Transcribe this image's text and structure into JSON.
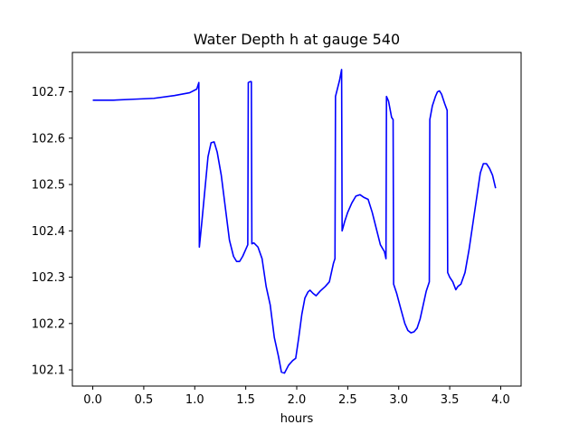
{
  "chart_data": {
    "type": "line",
    "title": "Water Depth h at gauge 540",
    "xlabel": "hours",
    "ylabel": "",
    "xlim": [
      -0.2,
      4.2
    ],
    "ylim": [
      102.065,
      102.785
    ],
    "xticks": [
      0.0,
      0.5,
      1.0,
      1.5,
      2.0,
      2.5,
      3.0,
      3.5,
      4.0
    ],
    "xtick_labels": [
      "0.0",
      "0.5",
      "1.0",
      "1.5",
      "2.0",
      "2.5",
      "3.0",
      "3.5",
      "4.0"
    ],
    "yticks": [
      102.1,
      102.2,
      102.3,
      102.4,
      102.5,
      102.6,
      102.7
    ],
    "ytick_labels": [
      "102.1",
      "102.2",
      "102.3",
      "102.4",
      "102.5",
      "102.6",
      "102.7"
    ],
    "grid": false,
    "series": [
      {
        "color": "#0000ff",
        "points": [
          [
            0.0,
            102.682
          ],
          [
            0.2,
            102.682
          ],
          [
            0.4,
            102.684
          ],
          [
            0.6,
            102.686
          ],
          [
            0.8,
            102.692
          ],
          [
            0.95,
            102.698
          ],
          [
            1.02,
            102.706
          ],
          [
            1.04,
            102.72
          ],
          [
            1.045,
            102.365
          ],
          [
            1.07,
            102.42
          ],
          [
            1.1,
            102.49
          ],
          [
            1.13,
            102.56
          ],
          [
            1.16,
            102.59
          ],
          [
            1.19,
            102.592
          ],
          [
            1.22,
            102.57
          ],
          [
            1.26,
            102.52
          ],
          [
            1.3,
            102.45
          ],
          [
            1.34,
            102.38
          ],
          [
            1.38,
            102.345
          ],
          [
            1.41,
            102.334
          ],
          [
            1.44,
            102.334
          ],
          [
            1.47,
            102.345
          ],
          [
            1.5,
            102.36
          ],
          [
            1.52,
            102.37
          ],
          [
            1.525,
            102.72
          ],
          [
            1.545,
            102.722
          ],
          [
            1.555,
            102.722
          ],
          [
            1.56,
            102.372
          ],
          [
            1.58,
            102.374
          ],
          [
            1.62,
            102.365
          ],
          [
            1.66,
            102.34
          ],
          [
            1.7,
            102.28
          ],
          [
            1.74,
            102.24
          ],
          [
            1.78,
            102.17
          ],
          [
            1.82,
            102.13
          ],
          [
            1.85,
            102.095
          ],
          [
            1.88,
            102.093
          ],
          [
            1.92,
            102.11
          ],
          [
            1.96,
            102.12
          ],
          [
            1.99,
            102.125
          ],
          [
            2.02,
            102.17
          ],
          [
            2.05,
            102.22
          ],
          [
            2.08,
            102.255
          ],
          [
            2.11,
            102.268
          ],
          [
            2.13,
            102.272
          ],
          [
            2.16,
            102.265
          ],
          [
            2.19,
            102.26
          ],
          [
            2.23,
            102.27
          ],
          [
            2.28,
            102.28
          ],
          [
            2.32,
            102.29
          ],
          [
            2.36,
            102.33
          ],
          [
            2.375,
            102.34
          ],
          [
            2.38,
            102.69
          ],
          [
            2.42,
            102.725
          ],
          [
            2.44,
            102.748
          ],
          [
            2.445,
            102.4
          ],
          [
            2.47,
            102.42
          ],
          [
            2.5,
            102.44
          ],
          [
            2.54,
            102.46
          ],
          [
            2.58,
            102.475
          ],
          [
            2.62,
            102.478
          ],
          [
            2.66,
            102.472
          ],
          [
            2.7,
            102.468
          ],
          [
            2.74,
            102.44
          ],
          [
            2.78,
            102.405
          ],
          [
            2.82,
            102.37
          ],
          [
            2.86,
            102.355
          ],
          [
            2.875,
            102.34
          ],
          [
            2.88,
            102.69
          ],
          [
            2.9,
            102.68
          ],
          [
            2.93,
            102.645
          ],
          [
            2.945,
            102.64
          ],
          [
            2.95,
            102.285
          ],
          [
            2.98,
            102.265
          ],
          [
            3.02,
            102.232
          ],
          [
            3.06,
            102.2
          ],
          [
            3.09,
            102.185
          ],
          [
            3.12,
            102.18
          ],
          [
            3.15,
            102.182
          ],
          [
            3.18,
            102.19
          ],
          [
            3.21,
            102.21
          ],
          [
            3.24,
            102.24
          ],
          [
            3.27,
            102.27
          ],
          [
            3.3,
            102.29
          ],
          [
            3.305,
            102.64
          ],
          [
            3.33,
            102.67
          ],
          [
            3.36,
            102.69
          ],
          [
            3.38,
            102.7
          ],
          [
            3.4,
            102.702
          ],
          [
            3.42,
            102.695
          ],
          [
            3.45,
            102.675
          ],
          [
            3.475,
            102.66
          ],
          [
            3.48,
            102.31
          ],
          [
            3.5,
            102.3
          ],
          [
            3.53,
            102.29
          ],
          [
            3.56,
            102.273
          ],
          [
            3.58,
            102.28
          ],
          [
            3.61,
            102.285
          ],
          [
            3.65,
            102.31
          ],
          [
            3.69,
            102.36
          ],
          [
            3.73,
            102.42
          ],
          [
            3.77,
            102.48
          ],
          [
            3.8,
            102.525
          ],
          [
            3.83,
            102.545
          ],
          [
            3.86,
            102.545
          ],
          [
            3.89,
            102.535
          ],
          [
            3.92,
            102.52
          ],
          [
            3.95,
            102.492
          ]
        ]
      }
    ]
  }
}
